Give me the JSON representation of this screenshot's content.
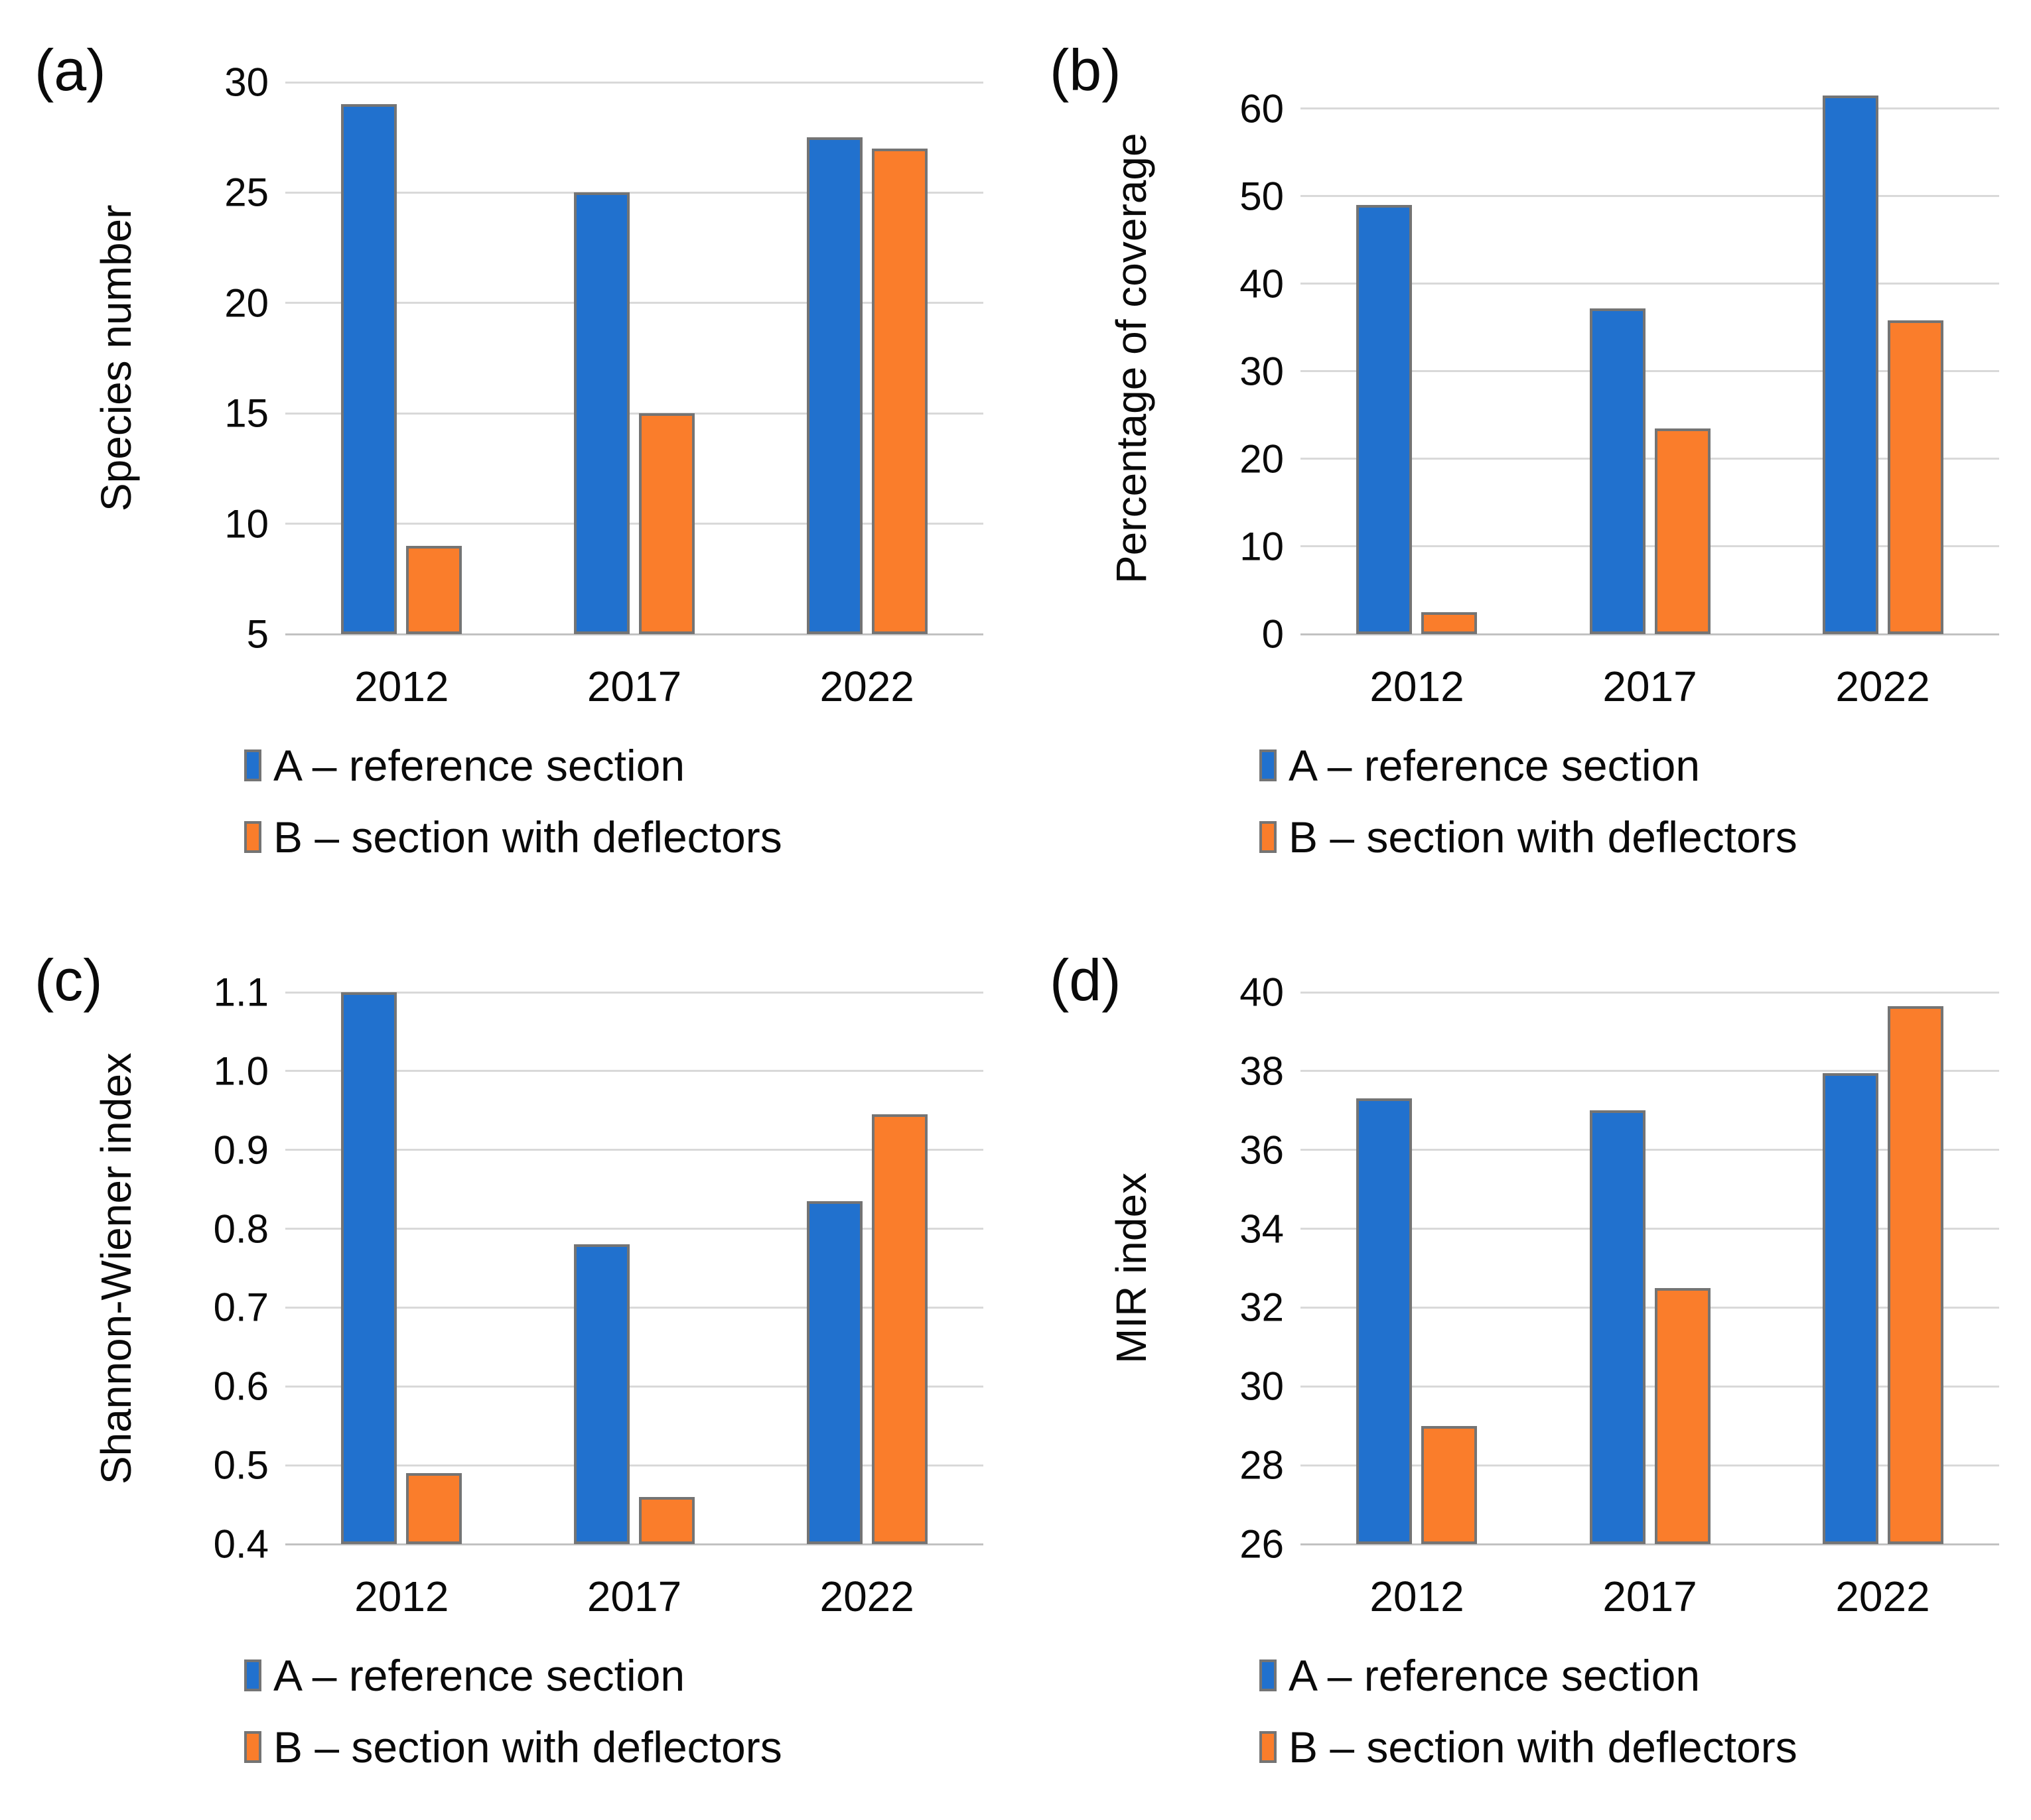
{
  "palette": {
    "series_a_blue": "#2171CE",
    "series_b_orange": "#FA7D2B",
    "bar_border_gray": "#747474",
    "gridline_gray": "#D9D9D9",
    "text_black": "#0a0a0a",
    "background": "#ffffff"
  },
  "chart_data": [
    {
      "type": "bar",
      "panel_label": "(a)",
      "title": "",
      "xlabel": "",
      "ylabel": "Species number",
      "categories": [
        "2012",
        "2017",
        "2022"
      ],
      "series": [
        {
          "name": "A – reference section",
          "color": "#2171CE",
          "values": [
            29,
            25,
            27.5
          ]
        },
        {
          "name": "B – section with deflectors",
          "color": "#FA7D2B",
          "values": [
            9,
            15,
            27
          ]
        }
      ],
      "axis": {
        "min": 5,
        "plot_top": 30,
        "ticks": [
          {
            "label": "5",
            "value": 5
          },
          {
            "label": "10",
            "value": 10
          },
          {
            "label": "15",
            "value": 15
          },
          {
            "label": "20",
            "value": 20
          },
          {
            "label": "25",
            "value": 25
          },
          {
            "label": "30",
            "value": 30
          }
        ]
      },
      "grid": true,
      "legend_position": "bottom-left"
    },
    {
      "type": "bar",
      "panel_label": "(b)",
      "title": "",
      "xlabel": "",
      "ylabel": "Percentage of coverage",
      "categories": [
        "2012",
        "2017",
        "2022"
      ],
      "series": [
        {
          "name": "A – reference section",
          "color": "#2171CE",
          "values": [
            49,
            37.2,
            61.5
          ]
        },
        {
          "name": "B – section with deflectors",
          "color": "#FA7D2B",
          "values": [
            2.5,
            23.5,
            35.8
          ]
        }
      ],
      "axis": {
        "min": 0,
        "plot_top": 63,
        "ticks": [
          {
            "label": "0",
            "value": 0
          },
          {
            "label": "10",
            "value": 10
          },
          {
            "label": "20",
            "value": 20
          },
          {
            "label": "30",
            "value": 30
          },
          {
            "label": "40",
            "value": 40
          },
          {
            "label": "50",
            "value": 50
          },
          {
            "label": "60",
            "value": 60
          }
        ]
      },
      "grid": true,
      "legend_position": "bottom-left"
    },
    {
      "type": "bar",
      "panel_label": "(c)",
      "title": "",
      "xlabel": "",
      "ylabel": "Shannon-Wiener index",
      "categories": [
        "2012",
        "2017",
        "2022"
      ],
      "series": [
        {
          "name": "A – reference section",
          "color": "#2171CE",
          "values": [
            1.1,
            0.78,
            0.835
          ]
        },
        {
          "name": "B – section with deflectors",
          "color": "#FA7D2B",
          "values": [
            0.49,
            0.46,
            0.945
          ]
        }
      ],
      "axis": {
        "min": 0.4,
        "plot_top": 1.1,
        "ticks": [
          {
            "label": "0.4",
            "value": 0.4
          },
          {
            "label": "0.5",
            "value": 0.5
          },
          {
            "label": "0.6",
            "value": 0.6
          },
          {
            "label": "0.7",
            "value": 0.7
          },
          {
            "label": "0.8",
            "value": 0.8
          },
          {
            "label": "0.9",
            "value": 0.9
          },
          {
            "label": "1.0",
            "value": 1.0
          },
          {
            "label": "1.1",
            "value": 1.1
          }
        ]
      },
      "grid": true,
      "legend_position": "bottom-left"
    },
    {
      "type": "bar",
      "panel_label": "(d)",
      "title": "",
      "xlabel": "",
      "ylabel": "MIR index",
      "categories": [
        "2012",
        "2017",
        "2022"
      ],
      "series": [
        {
          "name": "A – reference section",
          "color": "#2171CE",
          "values": [
            37.3,
            37,
            37.95
          ]
        },
        {
          "name": "B – section with deflectors",
          "color": "#FA7D2B",
          "values": [
            29,
            32.5,
            39.65
          ]
        }
      ],
      "axis": {
        "min": 26,
        "plot_top": 40,
        "ticks": [
          {
            "label": "26",
            "value": 26
          },
          {
            "label": "28",
            "value": 28
          },
          {
            "label": "30",
            "value": 30
          },
          {
            "label": "32",
            "value": 32
          },
          {
            "label": "34",
            "value": 34
          },
          {
            "label": "36",
            "value": 36
          },
          {
            "label": "38",
            "value": 38
          },
          {
            "label": "40",
            "value": 40
          }
        ]
      },
      "grid": true,
      "legend_position": "bottom-left"
    }
  ]
}
